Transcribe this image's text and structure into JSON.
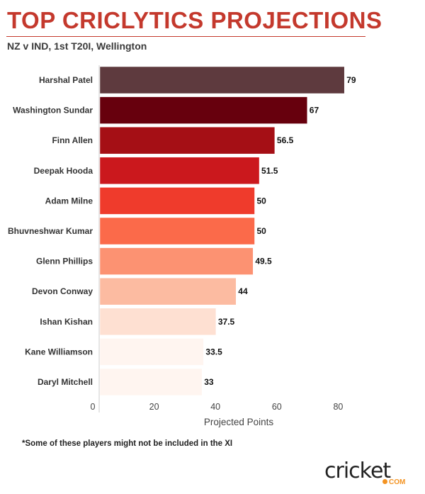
{
  "header": {
    "title": "TOP CRICLYTICS PROJECTIONS",
    "subtitle": "NZ v IND, 1st T20I, Wellington"
  },
  "footnote": "*Some of these players might not be included in the XI",
  "logo": {
    "text_main": "cricket",
    "text_suffix": "COM"
  },
  "chart_data": {
    "type": "bar",
    "orientation": "horizontal",
    "categories": [
      "Harshal Patel",
      "Washington Sundar",
      "Finn Allen",
      "Deepak Hooda",
      "Adam Milne",
      "Bhuvneshwar Kumar",
      "Glenn Phillips",
      "Devon Conway",
      "Ishan Kishan",
      "Kane Williamson",
      "Daryl Mitchell"
    ],
    "values": [
      79,
      67,
      56.5,
      51.5,
      50,
      50,
      49.5,
      44,
      37.5,
      33.5,
      33
    ],
    "value_labels": [
      "79",
      "67",
      "56.5",
      "51.5",
      "50",
      "50",
      "49.5",
      "44",
      "37.5",
      "33.5",
      "33"
    ],
    "colors": [
      "#5e3a3e",
      "#67000d",
      "#a50f15",
      "#cb181d",
      "#ef3b2c",
      "#fb6a4a",
      "#fc9272",
      "#fcbba1",
      "#fee0d2",
      "#fff5f0",
      "#fff5f0"
    ],
    "xlabel": "Projected Points",
    "xticks": [
      "0",
      "20",
      "40",
      "60",
      "80"
    ],
    "xlim": [
      0,
      80
    ],
    "grid": false
  }
}
